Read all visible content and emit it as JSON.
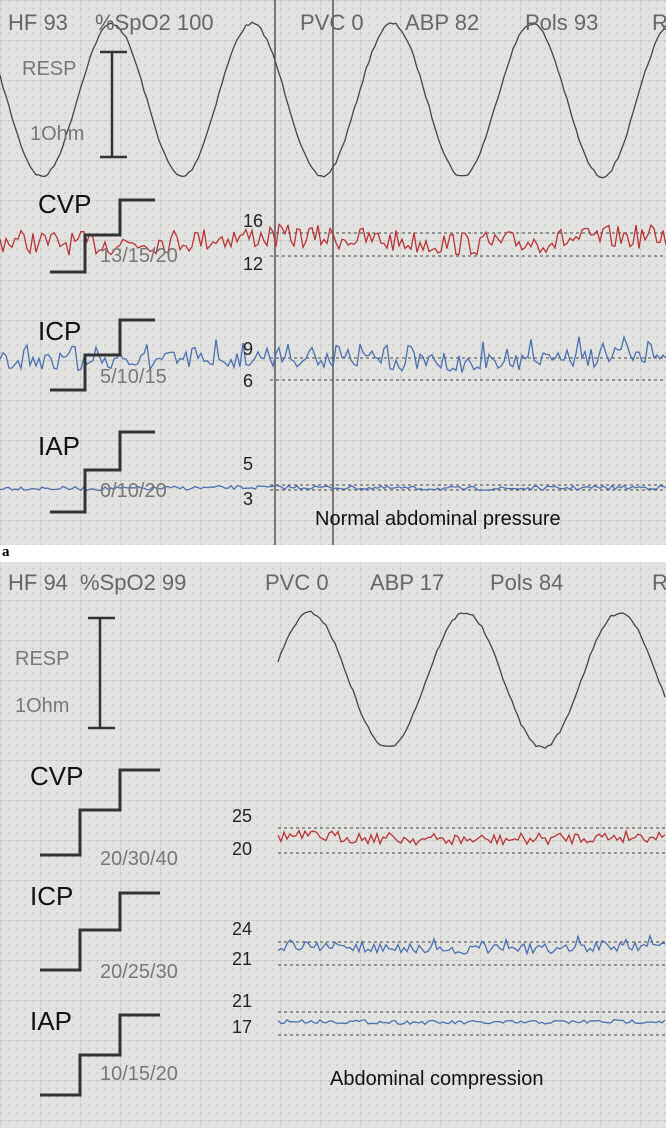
{
  "figure_label": "a",
  "panels": [
    {
      "header": [
        "HF 93",
        "%SpO2 100",
        "PVC 0",
        "ABP 82",
        "Pols 93",
        "R"
      ],
      "resp": {
        "label": "RESP",
        "scale": "1Ohm"
      },
      "channels": [
        {
          "name": "CVP",
          "scale": "13/15/20",
          "upper": 16,
          "lower": 12
        },
        {
          "name": "ICP",
          "scale": "5/10/15",
          "upper": 9,
          "lower": 6
        },
        {
          "name": "IAP",
          "scale": "0/10/20",
          "upper": 5,
          "lower": 3
        }
      ],
      "caption": "Normal abdominal pressure"
    },
    {
      "header": [
        "HF 94",
        "%SpO2 99",
        "PVC 0",
        "ABP 17",
        "Pols 84",
        "R"
      ],
      "resp": {
        "label": "RESP",
        "scale": "1Ohm"
      },
      "channels": [
        {
          "name": "CVP",
          "scale": "20/30/40",
          "upper": 25,
          "lower": 20
        },
        {
          "name": "ICP",
          "scale": "20/25/30",
          "upper": 24,
          "lower": 21
        },
        {
          "name": "IAP",
          "scale": "10/15/20",
          "upper": 21,
          "lower": 17
        }
      ],
      "caption": "Abdominal compression"
    }
  ]
}
